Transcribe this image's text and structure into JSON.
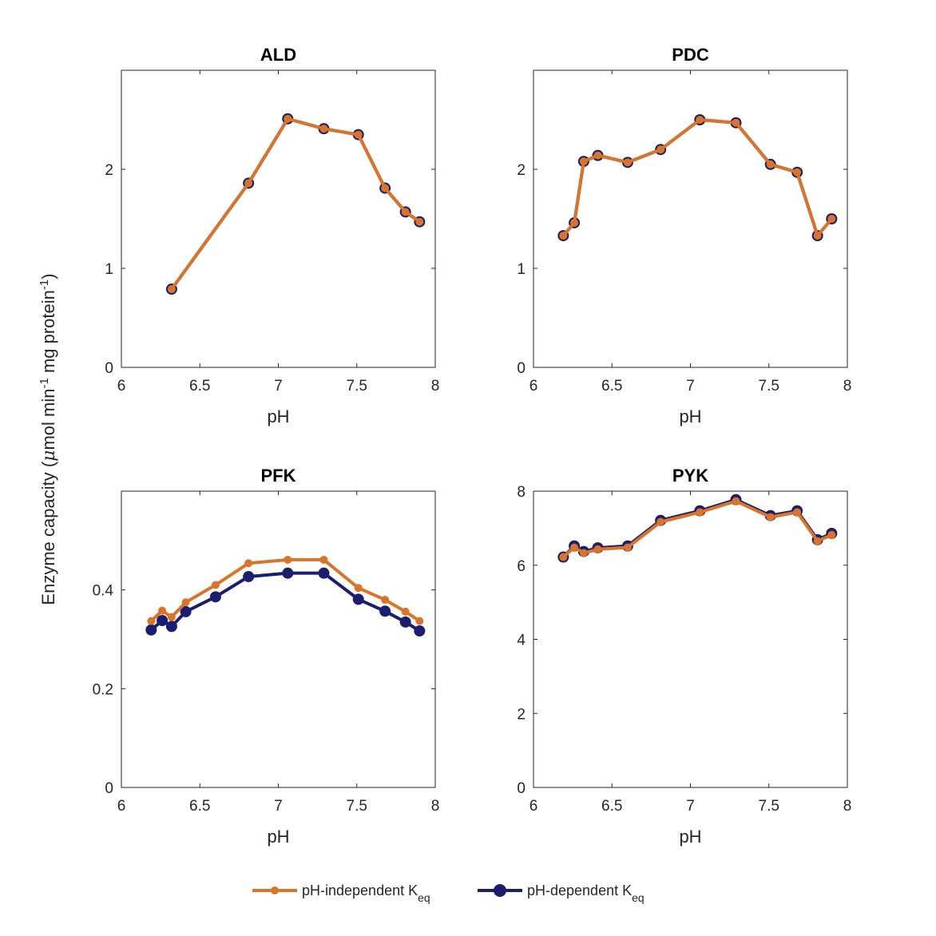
{
  "figure": {
    "ylabel": {
      "prefix": "Enzyme capacity (",
      "mu": "μ",
      "mid": "mol min",
      "sup1": "-1",
      "mid2": " mg protein",
      "sup2": "-1",
      "suffix": ")"
    },
    "legend": {
      "placement": "bottom-center",
      "items": [
        {
          "text": "pH-independent K",
          "sub": "eq",
          "color": "#D9742A"
        },
        {
          "text": "pH-dependent K",
          "sub": "eq",
          "color": "#1B1E6E"
        }
      ]
    }
  },
  "chart_data": [
    {
      "type": "line",
      "title": "ALD",
      "xlabel": "pH",
      "xlim": [
        6,
        8
      ],
      "ylim": [
        0,
        3
      ],
      "xticks": [
        6,
        6.5,
        7,
        7.5,
        8
      ],
      "xtick_labels": [
        "6",
        "6.5",
        "7",
        "7.5",
        "8"
      ],
      "yticks": [
        0,
        1,
        2
      ],
      "ytick_labels": [
        "0",
        "1",
        "2"
      ],
      "x": [
        6.32,
        6.81,
        7.06,
        7.29,
        7.51,
        7.68,
        7.81,
        7.9
      ],
      "series": [
        {
          "color": "#1B1E6E",
          "values": [
            0.79,
            1.86,
            2.51,
            2.41,
            2.35,
            1.81,
            1.57,
            1.47
          ]
        },
        {
          "color": "#D9742A",
          "values": [
            0.79,
            1.86,
            2.51,
            2.41,
            2.35,
            1.81,
            1.57,
            1.47
          ]
        }
      ]
    },
    {
      "type": "line",
      "title": "PDC",
      "xlabel": "pH",
      "xlim": [
        6,
        8
      ],
      "ylim": [
        0,
        3
      ],
      "xticks": [
        6,
        6.5,
        7,
        7.5,
        8
      ],
      "xtick_labels": [
        "6",
        "6.5",
        "7",
        "7.5",
        "8"
      ],
      "yticks": [
        0,
        1,
        2
      ],
      "ytick_labels": [
        "0",
        "1",
        "2"
      ],
      "x": [
        6.19,
        6.26,
        6.32,
        6.41,
        6.6,
        6.81,
        7.06,
        7.29,
        7.51,
        7.68,
        7.81,
        7.9
      ],
      "series": [
        {
          "color": "#1B1E6E",
          "values": [
            1.33,
            1.46,
            2.08,
            2.14,
            2.07,
            2.2,
            2.5,
            2.47,
            2.05,
            1.97,
            1.33,
            1.5
          ]
        },
        {
          "color": "#D9742A",
          "values": [
            1.33,
            1.46,
            2.08,
            2.14,
            2.07,
            2.2,
            2.5,
            2.47,
            2.05,
            1.97,
            1.33,
            1.5
          ]
        }
      ]
    },
    {
      "type": "line",
      "title": "PFK",
      "xlabel": "pH",
      "xlim": [
        6,
        8
      ],
      "ylim": [
        0,
        0.6
      ],
      "xticks": [
        6,
        6.5,
        7,
        7.5,
        8
      ],
      "xtick_labels": [
        "6",
        "6.5",
        "7",
        "7.5",
        "8"
      ],
      "yticks": [
        0,
        0.2,
        0.4
      ],
      "ytick_labels": [
        "0",
        "0.2",
        "0.4"
      ],
      "x": [
        6.19,
        6.26,
        6.32,
        6.41,
        6.6,
        6.81,
        7.06,
        7.29,
        7.51,
        7.68,
        7.81,
        7.9
      ],
      "series": [
        {
          "color": "#1B1E6E",
          "values": [
            0.319,
            0.338,
            0.326,
            0.356,
            0.386,
            0.427,
            0.434,
            0.434,
            0.381,
            0.357,
            0.335,
            0.317
          ]
        },
        {
          "color": "#D9742A",
          "values": [
            0.337,
            0.358,
            0.345,
            0.375,
            0.41,
            0.454,
            0.461,
            0.461,
            0.404,
            0.38,
            0.356,
            0.337
          ]
        }
      ]
    },
    {
      "type": "line",
      "title": "PYK",
      "xlabel": "pH",
      "xlim": [
        6,
        8
      ],
      "ylim": [
        0,
        8
      ],
      "xticks": [
        6,
        6.5,
        7,
        7.5,
        8
      ],
      "xtick_labels": [
        "6",
        "6.5",
        "7",
        "7.5",
        "8"
      ],
      "yticks": [
        0,
        2,
        4,
        6,
        8
      ],
      "ytick_labels": [
        "0",
        "2",
        "4",
        "6",
        "8"
      ],
      "x": [
        6.19,
        6.26,
        6.32,
        6.41,
        6.6,
        6.81,
        7.06,
        7.29,
        7.51,
        7.68,
        7.81,
        7.9
      ],
      "series": [
        {
          "color": "#1B1E6E",
          "values": [
            6.22,
            6.52,
            6.37,
            6.47,
            6.52,
            7.21,
            7.47,
            7.77,
            7.34,
            7.47,
            6.69,
            6.86
          ]
        },
        {
          "color": "#D9742A",
          "values": [
            6.22,
            6.48,
            6.33,
            6.43,
            6.48,
            7.17,
            7.43,
            7.73,
            7.3,
            7.43,
            6.65,
            6.82
          ]
        }
      ]
    }
  ]
}
